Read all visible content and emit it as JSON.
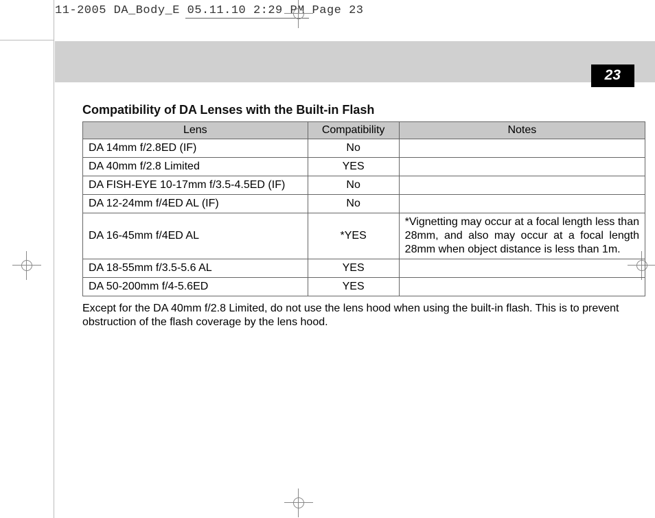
{
  "crop_header": "11-2005 DA_Body_E  05.11.10 2:29 PM  Page 23",
  "page_number": "23",
  "section_title": "Compatibility of DA Lenses with the Built-in Flash",
  "table": {
    "columns": [
      "Lens",
      "Compatibility",
      "Notes"
    ],
    "rows": [
      {
        "lens": "DA 14mm f/2.8ED (IF)",
        "compat": "No",
        "notes": ""
      },
      {
        "lens": "DA 40mm f/2.8 Limited",
        "compat": "YES",
        "notes": ""
      },
      {
        "lens": "DA FISH-EYE 10-17mm f/3.5-4.5ED (IF)",
        "compat": "No",
        "notes": ""
      },
      {
        "lens": "DA 12-24mm f/4ED AL (IF)",
        "compat": "No",
        "notes": ""
      },
      {
        "lens": "DA 16-45mm f/4ED AL",
        "compat": "*YES",
        "notes": "*Vignetting may occur at a focal length less than 28mm, and also may occur at a focal length 28mm when object distance is less than 1m."
      },
      {
        "lens": "DA 18-55mm f/3.5-5.6 AL",
        "compat": "YES",
        "notes": ""
      },
      {
        "lens": "DA 50-200mm f/4-5.6ED",
        "compat": "YES",
        "notes": ""
      }
    ]
  },
  "footnote": "Except for the DA 40mm f/2.8 Limited, do not use the lens hood when using the built-in flash. This is to prevent obstruction of the flash coverage by the lens hood.",
  "colors": {
    "band": "#d0d0d0",
    "th_bg": "#c8c8c8",
    "border": "#666666",
    "badge_bg": "#000000",
    "badge_fg": "#ffffff"
  }
}
